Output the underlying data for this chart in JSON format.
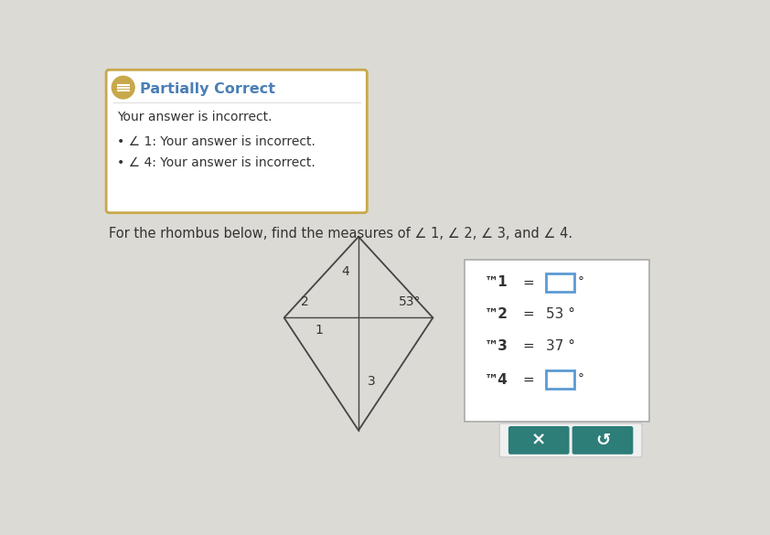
{
  "bg_color": "#dcdad4",
  "title_box_color": "#ffffff",
  "title_box_border": "#c8a84b",
  "partially_correct_color": "#4a7fb5",
  "partially_correct_text": "Partially Correct",
  "incorrect_text": "Your answer is incorrect.",
  "bullet1": "∠ 1: Your answer is incorrect.",
  "bullet2": "∠ 4: Your answer is incorrect.",
  "question_text": "For the rhombus below, find the measures of ∠ 1, ∠ 2, ∠ 3, and ∠ 4.",
  "rhombus_color": "#444444",
  "answer_box_bg": "#ffffff",
  "answer_box_border": "#aaaaaa",
  "button_color": "#2d7d78",
  "angle1_label": "™1",
  "angle2_label": "™2",
  "angle3_label": "™3",
  "angle4_label": "™4",
  "angle2_value": "53 °",
  "angle3_value": "37 °",
  "angle_53_label": "53°",
  "input_box_color": "#5b9bd5",
  "icon_color": "#c8a84b",
  "text_color": "#333333"
}
